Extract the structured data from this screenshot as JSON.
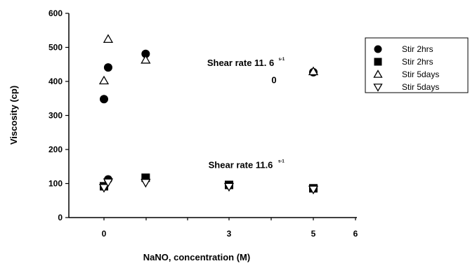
{
  "chart_data": {
    "type": "scatter",
    "xlabel": "NaNO, concentration (M)",
    "ylabel": "Viscosity (cp)",
    "xlim": [
      -1,
      6
    ],
    "ylim": [
      0,
      600
    ],
    "xticks": [
      "0",
      "3",
      "5",
      "6"
    ],
    "yticks": [
      "0",
      "100",
      "200",
      "300",
      "400",
      "500",
      "600"
    ],
    "grid": false,
    "legend_position": "right",
    "annotations": [
      {
        "id": "upper",
        "text": "Shear rate 11. 6",
        "sup": "s-1",
        "x": 2.2,
        "y": 445
      },
      {
        "id": "upper_zero",
        "text": "0",
        "x": 3.0,
        "y": 395
      },
      {
        "id": "lower",
        "text": "Shear rate 11.6",
        "sup": "s-1",
        "x": 2.2,
        "y": 145
      }
    ],
    "series": [
      {
        "name": "Stir 2hrs",
        "marker": "circle",
        "points": [
          {
            "x": 0.0,
            "y": 348
          },
          {
            "x": 0.1,
            "y": 441
          },
          {
            "x": 1.0,
            "y": 481
          },
          {
            "x": 5.0,
            "y": 427
          },
          {
            "x": 0.1,
            "y": 112
          }
        ]
      },
      {
        "name": "Stir 2hrs",
        "marker": "square",
        "points": [
          {
            "x": 0.0,
            "y": 92
          },
          {
            "x": 1.0,
            "y": 117
          },
          {
            "x": 3.0,
            "y": 96
          },
          {
            "x": 5.0,
            "y": 86
          }
        ]
      },
      {
        "name": "Stir 5days",
        "marker": "triangle-up",
        "points": [
          {
            "x": 0.0,
            "y": 402
          },
          {
            "x": 0.1,
            "y": 524
          },
          {
            "x": 1.0,
            "y": 463
          },
          {
            "x": 5.0,
            "y": 429
          }
        ]
      },
      {
        "name": "Stir 5days",
        "marker": "triangle-down",
        "points": [
          {
            "x": 0.0,
            "y": 88
          },
          {
            "x": 0.1,
            "y": 104
          },
          {
            "x": 1.0,
            "y": 103
          },
          {
            "x": 3.0,
            "y": 91
          },
          {
            "x": 5.0,
            "y": 83
          }
        ]
      }
    ]
  }
}
